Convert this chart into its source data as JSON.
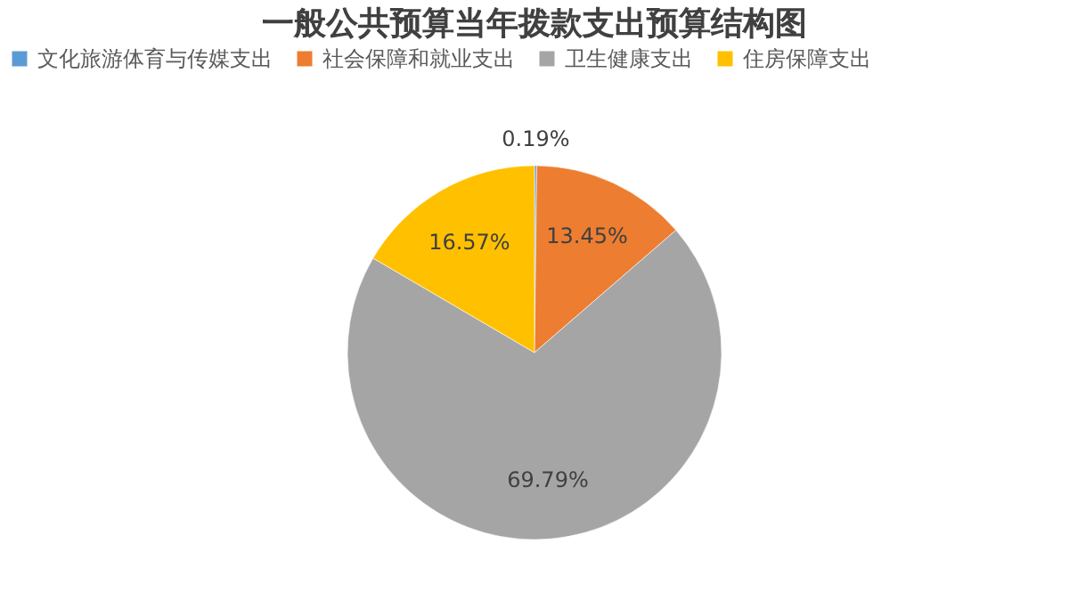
{
  "chart_data": {
    "type": "pie",
    "title": "一般公共预算当年拨款支出预算结构图",
    "categories": [
      "文化旅游体育与传媒支出",
      "社会保障和就业支出",
      "卫生健康支出",
      "住房保障支出"
    ],
    "values": [
      0.19,
      13.45,
      69.79,
      16.57
    ],
    "colors": [
      "#5b9bd5",
      "#ed7d31",
      "#a5a5a5",
      "#ffc000"
    ],
    "value_labels": [
      "0.19%",
      "13.45%",
      "69.79%",
      "16.57%"
    ],
    "legend": "top"
  }
}
